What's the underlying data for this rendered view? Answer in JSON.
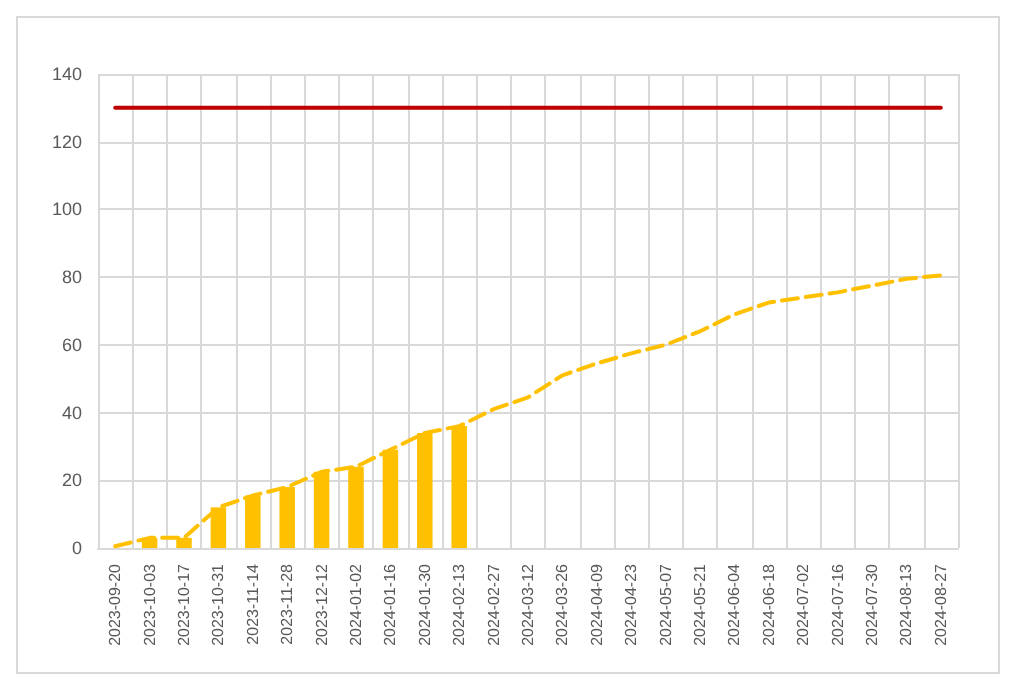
{
  "chart_data": {
    "type": "bar",
    "categories": [
      "2023-09-20",
      "2023-10-03",
      "2023-10-17",
      "2023-10-31",
      "2023-11-14",
      "2023-11-28",
      "2023-12-12",
      "2024-01-02",
      "2024-01-16",
      "2024-01-30",
      "2024-02-13",
      "2024-02-27",
      "2024-03-12",
      "2024-03-26",
      "2024-04-09",
      "2024-04-23",
      "2024-05-07",
      "2024-05-21",
      "2024-06-04",
      "2024-06-18",
      "2024-07-02",
      "2024-07-16",
      "2024-07-30",
      "2024-08-13",
      "2024-08-27"
    ],
    "series": [
      {
        "color": "#ffc000",
        "values": [
          null,
          3,
          3,
          12,
          15.5,
          18,
          22.5,
          24,
          29,
          34,
          36,
          null,
          null,
          null,
          null,
          null,
          null,
          null,
          null,
          null,
          null,
          null,
          null,
          null,
          null
        ]
      },
      {
        "type": "line",
        "color": "#ffc000",
        "line_style": "dashed",
        "values": [
          0.5,
          3,
          3,
          12,
          15.5,
          18,
          22.5,
          24,
          29,
          34,
          36,
          41,
          44.5,
          51,
          54.5,
          57.5,
          60,
          64,
          69,
          72.5,
          74,
          75.5,
          77.5,
          79.5,
          80.5
        ]
      },
      {
        "type": "line",
        "color": "#c00000",
        "line_style": "solid",
        "values": [
          130,
          130,
          130,
          130,
          130,
          130,
          130,
          130,
          130,
          130,
          130,
          130,
          130,
          130,
          130,
          130,
          130,
          130,
          130,
          130,
          130,
          130,
          130,
          130,
          130
        ]
      }
    ],
    "ylim": [
      0,
      140
    ],
    "yticks": [
      0,
      20,
      40,
      60,
      80,
      100,
      120,
      140
    ],
    "grid": true,
    "marker": "none"
  }
}
